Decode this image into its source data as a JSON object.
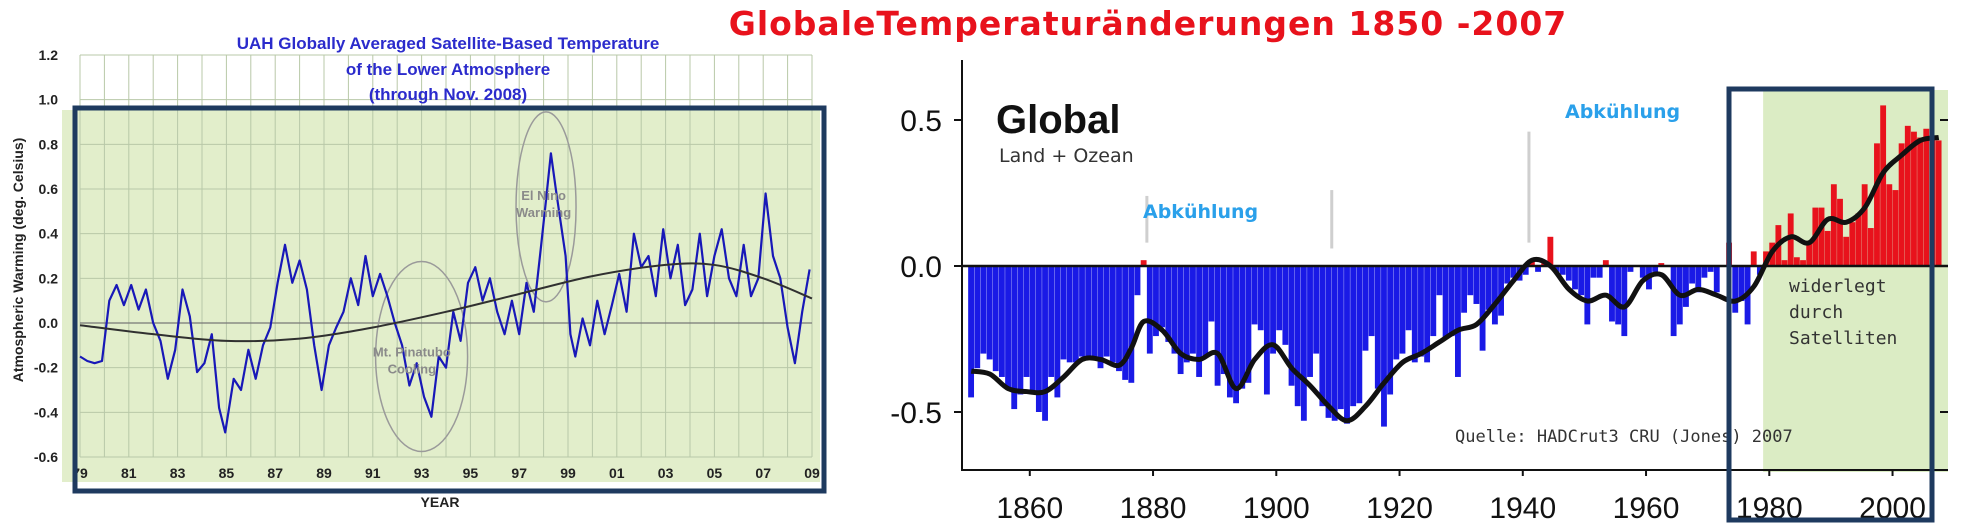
{
  "chart_data": [
    {
      "type": "line",
      "title_lines": [
        "UAH Globally Averaged Satellite-Based Temperature",
        "of the Lower Atmosphere",
        "(through Nov. 2008)"
      ],
      "xlabel": "YEAR",
      "ylabel": "Atmospheric Warming (deg. Celsius)",
      "xlim": [
        1979,
        2009
      ],
      "ylim": [
        -0.6,
        1.2
      ],
      "x_tick_labels": [
        "79",
        "81",
        "83",
        "85",
        "87",
        "89",
        "91",
        "93",
        "95",
        "97",
        "99",
        "01",
        "03",
        "05",
        "07",
        "09"
      ],
      "y_tick_labels": [
        "1.2",
        "1.0",
        "0.8",
        "0.6",
        "0.4",
        "0.2",
        "0.0",
        "-0.2",
        "-0.4",
        "-0.6"
      ],
      "annotations": [
        {
          "lines": [
            "El Nino",
            "Warming"
          ],
          "x": 1998.0,
          "y": 0.55
        },
        {
          "lines": [
            "Mt. Pinatubo",
            "Cooling"
          ],
          "x": 1992.6,
          "y": -0.15
        }
      ],
      "grid": true,
      "colors": {
        "line": "#1818b8",
        "trend": "#303030",
        "background": "#e2eecb",
        "grid": "#b8c8a8",
        "annotation": "#8a8a8a",
        "frame": "#1e3a5f"
      },
      "series": [
        {
          "values": [
            [
              1979.0,
              -0.15
            ],
            [
              1979.3,
              -0.17
            ],
            [
              1979.6,
              -0.18
            ],
            [
              1979.9,
              -0.17
            ],
            [
              1980.2,
              0.1
            ],
            [
              1980.5,
              0.17
            ],
            [
              1980.8,
              0.08
            ],
            [
              1981.1,
              0.17
            ],
            [
              1981.4,
              0.06
            ],
            [
              1981.7,
              0.15
            ],
            [
              1982.0,
              0.0
            ],
            [
              1982.3,
              -0.08
            ],
            [
              1982.6,
              -0.25
            ],
            [
              1982.9,
              -0.12
            ],
            [
              1983.2,
              0.15
            ],
            [
              1983.5,
              0.03
            ],
            [
              1983.8,
              -0.22
            ],
            [
              1984.1,
              -0.18
            ],
            [
              1984.4,
              -0.05
            ],
            [
              1984.7,
              -0.38
            ],
            [
              1984.95,
              -0.49
            ],
            [
              1985.3,
              -0.25
            ],
            [
              1985.6,
              -0.3
            ],
            [
              1985.9,
              -0.12
            ],
            [
              1986.2,
              -0.25
            ],
            [
              1986.5,
              -0.1
            ],
            [
              1986.8,
              -0.02
            ],
            [
              1987.1,
              0.18
            ],
            [
              1987.4,
              0.35
            ],
            [
              1987.7,
              0.18
            ],
            [
              1988.0,
              0.28
            ],
            [
              1988.3,
              0.15
            ],
            [
              1988.6,
              -0.1
            ],
            [
              1988.9,
              -0.3
            ],
            [
              1989.2,
              -0.1
            ],
            [
              1989.5,
              -0.02
            ],
            [
              1989.8,
              0.05
            ],
            [
              1990.1,
              0.2
            ],
            [
              1990.4,
              0.08
            ],
            [
              1990.7,
              0.3
            ],
            [
              1991.0,
              0.12
            ],
            [
              1991.3,
              0.22
            ],
            [
              1991.6,
              0.12
            ],
            [
              1991.9,
              0.0
            ],
            [
              1992.2,
              -0.1
            ],
            [
              1992.5,
              -0.28
            ],
            [
              1992.8,
              -0.18
            ],
            [
              1993.1,
              -0.33
            ],
            [
              1993.4,
              -0.42
            ],
            [
              1993.7,
              -0.15
            ],
            [
              1994.0,
              -0.2
            ],
            [
              1994.3,
              0.05
            ],
            [
              1994.6,
              -0.08
            ],
            [
              1994.9,
              0.18
            ],
            [
              1995.2,
              0.25
            ],
            [
              1995.5,
              0.1
            ],
            [
              1995.8,
              0.2
            ],
            [
              1996.1,
              0.05
            ],
            [
              1996.4,
              -0.05
            ],
            [
              1996.7,
              0.1
            ],
            [
              1997.0,
              -0.05
            ],
            [
              1997.3,
              0.18
            ],
            [
              1997.6,
              0.05
            ],
            [
              1997.9,
              0.35
            ],
            [
              1998.1,
              0.55
            ],
            [
              1998.3,
              0.76
            ],
            [
              1998.5,
              0.6
            ],
            [
              1998.7,
              0.45
            ],
            [
              1998.9,
              0.3
            ],
            [
              1999.1,
              -0.05
            ],
            [
              1999.3,
              -0.15
            ],
            [
              1999.6,
              0.02
            ],
            [
              1999.9,
              -0.1
            ],
            [
              2000.2,
              0.1
            ],
            [
              2000.5,
              -0.05
            ],
            [
              2000.8,
              0.08
            ],
            [
              2001.1,
              0.22
            ],
            [
              2001.4,
              0.05
            ],
            [
              2001.7,
              0.4
            ],
            [
              2002.0,
              0.25
            ],
            [
              2002.3,
              0.3
            ],
            [
              2002.6,
              0.12
            ],
            [
              2002.9,
              0.42
            ],
            [
              2003.2,
              0.2
            ],
            [
              2003.5,
              0.35
            ],
            [
              2003.8,
              0.08
            ],
            [
              2004.1,
              0.15
            ],
            [
              2004.4,
              0.4
            ],
            [
              2004.7,
              0.12
            ],
            [
              2005.0,
              0.3
            ],
            [
              2005.3,
              0.42
            ],
            [
              2005.6,
              0.2
            ],
            [
              2005.9,
              0.12
            ],
            [
              2006.2,
              0.35
            ],
            [
              2006.5,
              0.12
            ],
            [
              2006.8,
              0.2
            ],
            [
              2007.1,
              0.58
            ],
            [
              2007.4,
              0.3
            ],
            [
              2007.7,
              0.2
            ],
            [
              2008.0,
              -0.02
            ],
            [
              2008.3,
              -0.18
            ],
            [
              2008.6,
              0.05
            ],
            [
              2008.9,
              0.24
            ]
          ]
        },
        {
          "values": [
            [
              1979.0,
              -0.01
            ],
            [
              1982.0,
              -0.05
            ],
            [
              1985.0,
              -0.08
            ],
            [
              1988.0,
              -0.07
            ],
            [
              1991.0,
              -0.02
            ],
            [
              1994.0,
              0.05
            ],
            [
              1997.0,
              0.13
            ],
            [
              2000.0,
              0.21
            ],
            [
              2003.0,
              0.26
            ],
            [
              2005.0,
              0.26
            ],
            [
              2007.0,
              0.2
            ],
            [
              2009.0,
              0.11
            ]
          ]
        }
      ]
    },
    {
      "type": "bar",
      "title": "GlobaleTemperaturänderungen 1850 -2007",
      "panel_title": "Global",
      "panel_subtitle": "Land + Ozean",
      "annotations": [
        {
          "text": "Abkühlung",
          "x": 1885,
          "y": 0.3
        },
        {
          "text": "Abkühlung",
          "x": 1953,
          "y": 0.5
        },
        {
          "lines": [
            "widerlegt",
            "durch",
            "Satelliten"
          ],
          "x": 1986,
          "y": -0.06
        }
      ],
      "source": "Quelle: HADCrut3 CRU (Jones) 2007",
      "xlim": [
        1849,
        2009
      ],
      "ylim": [
        -0.7,
        0.7
      ],
      "x_tick_labels": [
        "1860",
        "1880",
        "1900",
        "1920",
        "1940",
        "1960",
        "1980",
        "2000"
      ],
      "y_tick_labels": [
        "0.5",
        "0.0",
        "-0.5"
      ],
      "highlight_range": [
        1979,
        2008
      ],
      "colors": {
        "positive": "#e8121c",
        "negative": "#1a1ae6",
        "smooth": "#111111",
        "highlight": "#dbecc4",
        "frame": "#1e3a5f",
        "title": "#e8121c",
        "cooling": "#2aa0ea"
      },
      "years": [
        1850,
        1851,
        1852,
        1853,
        1854,
        1855,
        1856,
        1857,
        1858,
        1859,
        1860,
        1861,
        1862,
        1863,
        1864,
        1865,
        1866,
        1867,
        1868,
        1869,
        1870,
        1871,
        1872,
        1873,
        1874,
        1875,
        1876,
        1877,
        1878,
        1879,
        1880,
        1881,
        1882,
        1883,
        1884,
        1885,
        1886,
        1887,
        1888,
        1889,
        1890,
        1891,
        1892,
        1893,
        1894,
        1895,
        1896,
        1897,
        1898,
        1899,
        1900,
        1901,
        1902,
        1903,
        1904,
        1905,
        1906,
        1907,
        1908,
        1909,
        1910,
        1911,
        1912,
        1913,
        1914,
        1915,
        1916,
        1917,
        1918,
        1919,
        1920,
        1921,
        1922,
        1923,
        1924,
        1925,
        1926,
        1927,
        1928,
        1929,
        1930,
        1931,
        1932,
        1933,
        1934,
        1935,
        1936,
        1937,
        1938,
        1939,
        1940,
        1941,
        1942,
        1943,
        1944,
        1945,
        1946,
        1947,
        1948,
        1949,
        1950,
        1951,
        1952,
        1953,
        1954,
        1955,
        1956,
        1957,
        1958,
        1959,
        1960,
        1961,
        1962,
        1963,
        1964,
        1965,
        1966,
        1967,
        1968,
        1969,
        1970,
        1971,
        1972,
        1973,
        1974,
        1975,
        1976,
        1977,
        1978,
        1979,
        1980,
        1981,
        1982,
        1983,
        1984,
        1985,
        1986,
        1987,
        1988,
        1989,
        1990,
        1991,
        1992,
        1993,
        1994,
        1995,
        1996,
        1997,
        1998,
        1999,
        2000,
        2001,
        2002,
        2003,
        2004,
        2005,
        2006,
        2007
      ],
      "anomalies": [
        -0.45,
        -0.35,
        -0.3,
        -0.32,
        -0.36,
        -0.38,
        -0.42,
        -0.49,
        -0.44,
        -0.38,
        -0.44,
        -0.5,
        -0.53,
        -0.38,
        -0.45,
        -0.32,
        -0.33,
        -0.33,
        -0.31,
        -0.32,
        -0.31,
        -0.35,
        -0.31,
        -0.33,
        -0.36,
        -0.39,
        -0.4,
        -0.1,
        0.02,
        -0.3,
        -0.24,
        -0.21,
        -0.26,
        -0.3,
        -0.37,
        -0.33,
        -0.3,
        -0.38,
        -0.31,
        -0.19,
        -0.41,
        -0.37,
        -0.45,
        -0.47,
        -0.42,
        -0.4,
        -0.2,
        -0.22,
        -0.44,
        -0.3,
        -0.22,
        -0.27,
        -0.41,
        -0.48,
        -0.53,
        -0.38,
        -0.3,
        -0.48,
        -0.52,
        -0.53,
        -0.49,
        -0.54,
        -0.48,
        -0.47,
        -0.29,
        -0.24,
        -0.42,
        -0.55,
        -0.44,
        -0.32,
        -0.3,
        -0.22,
        -0.33,
        -0.31,
        -0.33,
        -0.24,
        -0.1,
        -0.25,
        -0.24,
        -0.38,
        -0.16,
        -0.1,
        -0.13,
        -0.29,
        -0.15,
        -0.2,
        -0.17,
        -0.06,
        -0.04,
        -0.05,
        -0.03,
        0.02,
        -0.02,
        0.01,
        0.1,
        -0.02,
        -0.03,
        -0.05,
        -0.08,
        -0.1,
        -0.2,
        -0.04,
        -0.04,
        0.02,
        -0.19,
        -0.2,
        -0.24,
        -0.02,
        0.0,
        -0.04,
        -0.08,
        -0.02,
        0.01,
        0.0,
        -0.24,
        -0.2,
        -0.14,
        -0.06,
        -0.09,
        -0.04,
        -0.02,
        -0.09,
        0.0,
        0.08,
        -0.16,
        -0.12,
        -0.2,
        0.05,
        -0.03,
        0.05,
        0.08,
        0.14,
        0.02,
        0.18,
        0.03,
        0.02,
        0.08,
        0.2,
        0.2,
        0.12,
        0.28,
        0.23,
        0.1,
        0.15,
        0.18,
        0.28,
        0.13,
        0.42,
        0.55,
        0.28,
        0.26,
        0.42,
        0.48,
        0.46,
        0.44,
        0.47,
        0.44,
        0.43
      ],
      "smooth": [
        [
          1850,
          -0.36
        ],
        [
          1853,
          -0.37
        ],
        [
          1856,
          -0.42
        ],
        [
          1859,
          -0.43
        ],
        [
          1862,
          -0.43
        ],
        [
          1865,
          -0.38
        ],
        [
          1868,
          -0.32
        ],
        [
          1871,
          -0.32
        ],
        [
          1874,
          -0.34
        ],
        [
          1876,
          -0.28
        ],
        [
          1878,
          -0.19
        ],
        [
          1881,
          -0.22
        ],
        [
          1884,
          -0.3
        ],
        [
          1887,
          -0.32
        ],
        [
          1890,
          -0.3
        ],
        [
          1893,
          -0.42
        ],
        [
          1896,
          -0.32
        ],
        [
          1899,
          -0.27
        ],
        [
          1902,
          -0.35
        ],
        [
          1905,
          -0.41
        ],
        [
          1908,
          -0.48
        ],
        [
          1911,
          -0.53
        ],
        [
          1914,
          -0.48
        ],
        [
          1917,
          -0.4
        ],
        [
          1920,
          -0.33
        ],
        [
          1923,
          -0.3
        ],
        [
          1926,
          -0.26
        ],
        [
          1929,
          -0.22
        ],
        [
          1932,
          -0.2
        ],
        [
          1935,
          -0.13
        ],
        [
          1938,
          -0.05
        ],
        [
          1941,
          0.02
        ],
        [
          1944,
          0.0
        ],
        [
          1947,
          -0.08
        ],
        [
          1950,
          -0.12
        ],
        [
          1953,
          -0.1
        ],
        [
          1956,
          -0.14
        ],
        [
          1959,
          -0.05
        ],
        [
          1962,
          -0.03
        ],
        [
          1965,
          -0.1
        ],
        [
          1968,
          -0.08
        ],
        [
          1971,
          -0.1
        ],
        [
          1974,
          -0.12
        ],
        [
          1977,
          -0.07
        ],
        [
          1980,
          0.05
        ],
        [
          1983,
          0.1
        ],
        [
          1986,
          0.08
        ],
        [
          1989,
          0.16
        ],
        [
          1992,
          0.15
        ],
        [
          1995,
          0.2
        ],
        [
          1998,
          0.32
        ],
        [
          2001,
          0.38
        ],
        [
          2004,
          0.43
        ],
        [
          2007,
          0.44
        ]
      ]
    }
  ]
}
